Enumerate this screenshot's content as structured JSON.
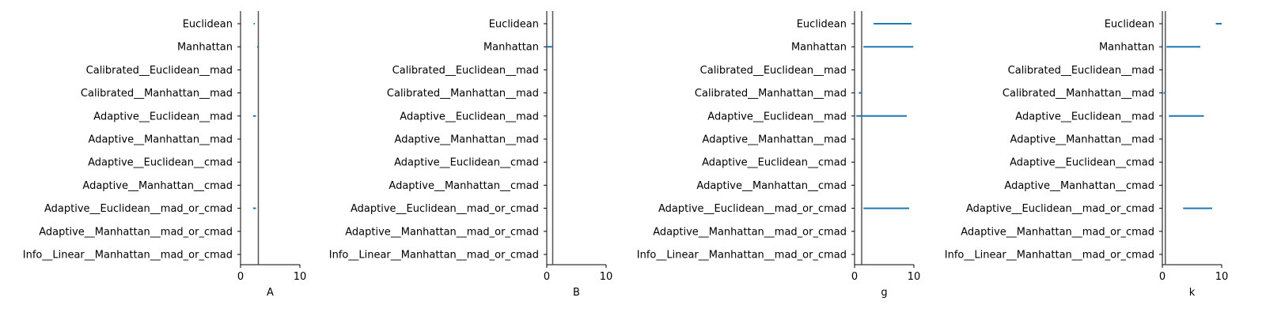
{
  "chart_data": [
    {
      "type": "interval",
      "xlabel": "A",
      "xlim": [
        0,
        10
      ],
      "xticks": [
        "0",
        "10"
      ],
      "categories": [
        "Euclidean",
        "Manhattan",
        "Calibrated__Euclidean__mad",
        "Calibrated__Manhattan__mad",
        "Adaptive__Euclidean__mad",
        "Adaptive__Manhattan__mad",
        "Adaptive__Euclidean__cmad",
        "Adaptive__Manhattan__cmad",
        "Adaptive__Euclidean__mad_or_cmad",
        "Adaptive__Manhattan__mad_or_cmad",
        "Info__Linear__Manhattan__mad_or_cmad"
      ],
      "reference_line": 3.0,
      "intervals": [
        [
          2.2,
          2.4
        ],
        [
          2.8,
          3.0
        ],
        null,
        null,
        [
          2.1,
          2.6
        ],
        null,
        null,
        null,
        [
          2.1,
          2.6
        ],
        null,
        null
      ]
    },
    {
      "type": "interval",
      "xlabel": "B",
      "xlim": [
        0,
        10
      ],
      "xticks": [
        "0",
        "10"
      ],
      "categories": [
        "Euclidean",
        "Manhattan",
        "Calibrated__Euclidean__mad",
        "Calibrated__Manhattan__mad",
        "Adaptive__Euclidean__mad",
        "Adaptive__Manhattan__mad",
        "Adaptive__Euclidean__cmad",
        "Adaptive__Manhattan__cmad",
        "Adaptive__Euclidean__mad_or_cmad",
        "Adaptive__Manhattan__mad_or_cmad",
        "Info__Linear__Manhattan__mad_or_cmad"
      ],
      "reference_line": 1.0,
      "intervals": [
        null,
        [
          0.0,
          0.9
        ],
        null,
        null,
        null,
        null,
        null,
        null,
        null,
        null,
        null
      ]
    },
    {
      "type": "interval",
      "xlabel": "g",
      "xlim": [
        0,
        10
      ],
      "xticks": [
        "0",
        "10"
      ],
      "categories": [
        "Euclidean",
        "Manhattan",
        "Calibrated__Euclidean__mad",
        "Calibrated__Manhattan__mad",
        "Adaptive__Euclidean__mad",
        "Adaptive__Manhattan__mad",
        "Adaptive__Euclidean__cmad",
        "Adaptive__Manhattan__cmad",
        "Adaptive__Euclidean__mad_or_cmad",
        "Adaptive__Manhattan__mad_or_cmad",
        "Info__Linear__Manhattan__mad_or_cmad"
      ],
      "reference_line": 1.2,
      "intervals": [
        [
          3.2,
          9.6
        ],
        [
          1.5,
          9.9
        ],
        null,
        [
          0.7,
          1.1
        ],
        [
          0.3,
          8.8
        ],
        null,
        null,
        null,
        [
          1.5,
          9.2
        ],
        null,
        null
      ]
    },
    {
      "type": "interval",
      "xlabel": "k",
      "xlim": [
        0,
        10
      ],
      "xticks": [
        "0",
        "10"
      ],
      "categories": [
        "Euclidean",
        "Manhattan",
        "Calibrated__Euclidean__mad",
        "Calibrated__Manhattan__mad",
        "Adaptive__Euclidean__mad",
        "Adaptive__Manhattan__mad",
        "Adaptive__Euclidean__cmad",
        "Adaptive__Manhattan__cmad",
        "Adaptive__Euclidean__mad_or_cmad",
        "Adaptive__Manhattan__mad_or_cmad",
        "Info__Linear__Manhattan__mad_or_cmad"
      ],
      "reference_line": 0.5,
      "intervals": [
        [
          9.0,
          10.0
        ],
        [
          0.7,
          6.4
        ],
        null,
        [
          0.2,
          0.5
        ],
        [
          1.1,
          7.0
        ],
        null,
        null,
        null,
        [
          3.5,
          8.4
        ],
        null,
        null
      ]
    }
  ],
  "colors": {
    "interval": "#1f77b4",
    "reference_line": "#555555",
    "axis": "#000000"
  }
}
